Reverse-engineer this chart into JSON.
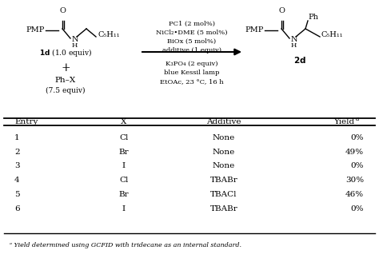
{
  "bg_color": "#ffffff",
  "table_headers": [
    "Entry",
    "X",
    "Additive",
    "Yield"
  ],
  "table_rows": [
    [
      "1",
      "Cl",
      "None",
      "0%"
    ],
    [
      "2",
      "Br",
      "None",
      "49%"
    ],
    [
      "3",
      "I",
      "None",
      "0%"
    ],
    [
      "4",
      "Cl",
      "TBABr",
      "30%"
    ],
    [
      "5",
      "Br",
      "TBACl",
      "46%"
    ],
    [
      "6",
      "I",
      "TBABr",
      "0%"
    ]
  ],
  "footnote": " Yield determined using GCFID with tridecane as an internal standard.",
  "reagents_above": [
    "PC1 (2 mol%)",
    "NiCl₂•DME (5 mol%)",
    "BiOx (5 mol%)",
    "additive (1 equiv)"
  ],
  "reagents_below": [
    "K₃PO₄ (2 equiv)",
    "blue Kessil lamp",
    "EtOAc, 23 °C, 16 h"
  ]
}
